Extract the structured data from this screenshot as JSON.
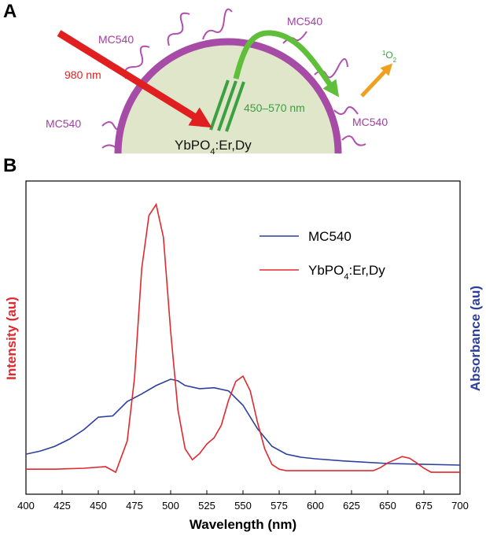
{
  "figure": {
    "panel_a_label": "A",
    "panel_b_label": "B",
    "diagram": {
      "laser": "980 nm",
      "emission": "450–570 nm",
      "dye_labels": [
        "MC540",
        "MC540",
        "MC540",
        "MC540"
      ],
      "particle": [
        {
          "text": "YbPO"
        },
        {
          "text": "4",
          "shift": "sub"
        },
        {
          "text": ":Er,Dy"
        }
      ],
      "singlet_oxygen": [
        {
          "text": "1",
          "shift": "sup"
        },
        {
          "text": "O"
        },
        {
          "text": "2",
          "shift": "sub"
        }
      ]
    }
  },
  "chart_data": {
    "type": "line",
    "x_label": "Wavelength (nm)",
    "y_label": "Intensity (au)",
    "y2_label": "Absorbance (au)",
    "xlim": [
      400,
      700
    ],
    "xticks": [
      400,
      425,
      450,
      475,
      500,
      525,
      550,
      575,
      600,
      625,
      650,
      675,
      700
    ],
    "ylim": [
      0,
      100
    ],
    "y2lim": [
      0,
      100
    ],
    "legend": "upper right",
    "series": [
      {
        "name": "MC540",
        "color": "#2b3f9e",
        "axis": "y2",
        "x": [
          400,
          410,
          420,
          430,
          440,
          450,
          460,
          470,
          480,
          490,
          500,
          505,
          510,
          520,
          530,
          540,
          550,
          560,
          570,
          580,
          590,
          600,
          620,
          650,
          700
        ],
        "values": [
          12.8,
          13.8,
          15.3,
          17.6,
          20.6,
          24.6,
          25,
          29.6,
          32,
          34.7,
          36.7,
          36.2,
          34.7,
          33.7,
          34,
          33,
          28.4,
          20.9,
          15.3,
          12.8,
          11.8,
          11.3,
          10.6,
          9.8,
          9.3
        ]
      },
      {
        "name": [
          {
            "text": "YbPO"
          },
          {
            "text": "4",
            "shift": "sub"
          },
          {
            "text": ":Er,Dy"
          }
        ],
        "color": "#e0282e",
        "x": [
          400,
          420,
          440,
          455,
          462,
          470,
          475,
          480,
          485,
          490,
          495,
          500,
          505,
          510,
          515,
          520,
          525,
          530,
          535,
          540,
          545,
          550,
          555,
          560,
          565,
          570,
          575,
          580,
          610,
          640,
          645,
          650,
          655,
          660,
          665,
          670,
          675,
          680,
          700
        ],
        "values": [
          8,
          8,
          8.3,
          8.8,
          7,
          17,
          37,
          72,
          89,
          92.5,
          82,
          52,
          27,
          14.5,
          11,
          13,
          16,
          18,
          22,
          30,
          36,
          37.7,
          33,
          23,
          14.5,
          9.5,
          8,
          7.5,
          7.5,
          7.5,
          8.5,
          10,
          11,
          12,
          11.5,
          10,
          8.3,
          7,
          7
        ]
      }
    ]
  }
}
